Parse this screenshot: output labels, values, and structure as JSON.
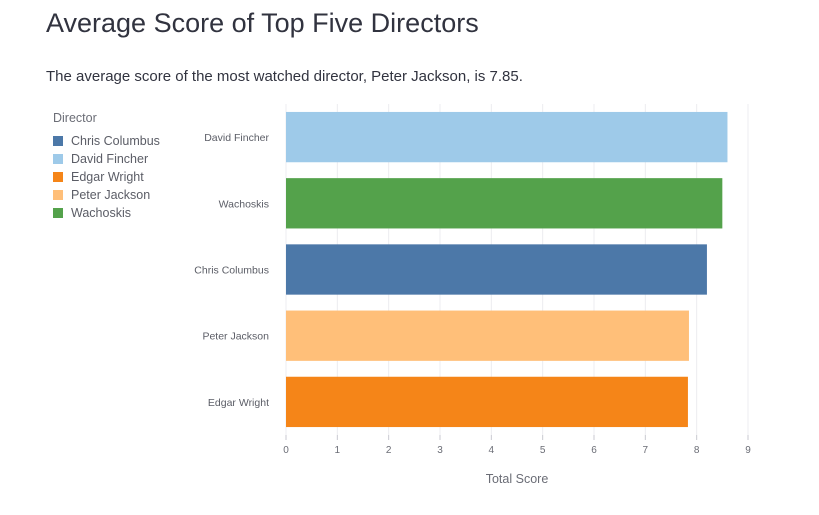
{
  "page": {
    "title": "Average Score of Top Five Directors",
    "subtitle": "The average score of the most watched director, Peter Jackson, is 7.85."
  },
  "legend": {
    "title": "Director",
    "items": [
      {
        "label": "Chris Columbus",
        "color": "#4c78a8"
      },
      {
        "label": "David Fincher",
        "color": "#9ecae9"
      },
      {
        "label": "Edgar Wright",
        "color": "#f58518"
      },
      {
        "label": "Peter Jackson",
        "color": "#ffbf79"
      },
      {
        "label": "Wachoskis",
        "color": "#54a24b"
      }
    ]
  },
  "chart_data": {
    "type": "bar",
    "orientation": "horizontal",
    "xlabel": "Total Score",
    "ylabel": "",
    "xlim": [
      0,
      9
    ],
    "x_ticks": [
      0,
      1,
      2,
      3,
      4,
      5,
      6,
      7,
      8,
      9
    ],
    "grid": true,
    "legend_position": "left",
    "categories": [
      "David Fincher",
      "Wachoskis",
      "Chris Columbus",
      "Peter Jackson",
      "Edgar Wright"
    ],
    "values": [
      8.6,
      8.5,
      8.2,
      7.85,
      7.83
    ],
    "colors": [
      "#9ecae9",
      "#54a24b",
      "#4c78a8",
      "#ffbf79",
      "#f58518"
    ]
  }
}
